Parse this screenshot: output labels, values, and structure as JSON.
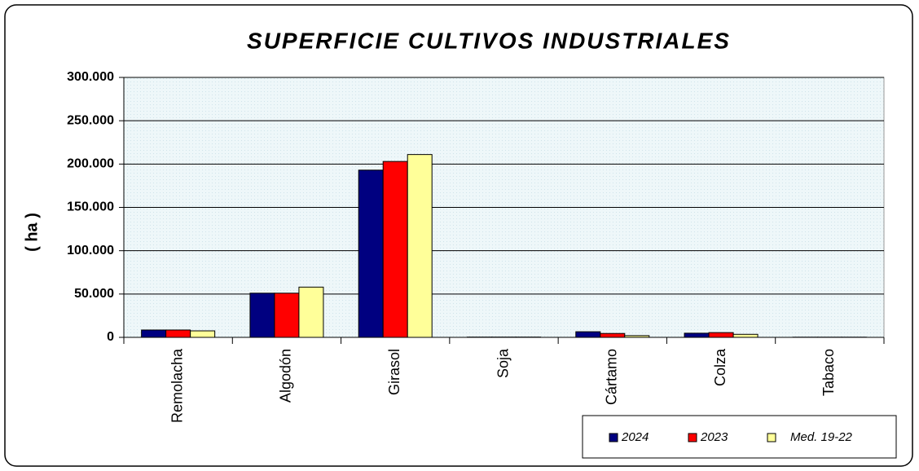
{
  "chart_data": {
    "type": "bar",
    "title": "SUPERFICIE CULTIVOS INDUSTRIALES",
    "y_label": "( ha )",
    "categories": [
      "Remolacha",
      "Algodón",
      "Girasol",
      "Soja",
      "Cártamo",
      "Colza",
      "Tabaco"
    ],
    "series": [
      {
        "name": "2024",
        "color": "#000080",
        "values": [
          8500,
          51000,
          193000,
          300,
          6500,
          4800,
          200
        ]
      },
      {
        "name": "2023",
        "color": "#ff0000",
        "values": [
          8500,
          51000,
          203000,
          300,
          4500,
          5500,
          200
        ]
      },
      {
        "name": "Med. 19-22",
        "color": "#ffff99",
        "values": [
          7500,
          58000,
          211000,
          300,
          2000,
          3500,
          200
        ]
      }
    ],
    "ylim": [
      0,
      300000
    ],
    "yticks": [
      0,
      {
        "value": 50000,
        "label": "50.000"
      },
      {
        "value": 100000,
        "label": "100.000"
      },
      {
        "value": 150000,
        "label": "150.000"
      },
      {
        "value": 200000,
        "label": "200.000"
      },
      {
        "value": 250000,
        "label": "250.000"
      },
      {
        "value": 300000,
        "label": "300.000"
      }
    ],
    "grid": true,
    "legend": "bottom-right"
  }
}
